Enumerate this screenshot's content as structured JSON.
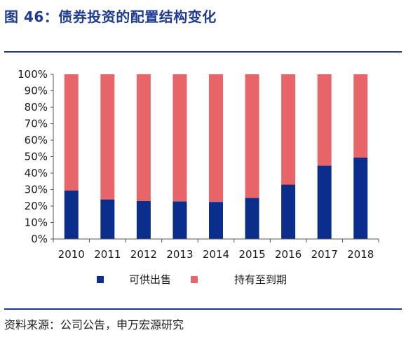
{
  "figure": {
    "title": "图 46：债券投资的配置结构变化",
    "source": "资料来源：公司公告，申万宏源研究"
  },
  "colors": {
    "accent": "#1f3a93",
    "series_available": "#0b2d8c",
    "series_held": "#e8666a"
  },
  "chart_data": {
    "type": "bar",
    "stacked": true,
    "percent_stacked": true,
    "categories": [
      "2010",
      "2011",
      "2012",
      "2013",
      "2014",
      "2015",
      "2016",
      "2017",
      "2018"
    ],
    "series": [
      {
        "name": "可供出售",
        "values": [
          29.5,
          24,
          23,
          22.8,
          22.5,
          25,
          33,
          44.5,
          49.5
        ]
      },
      {
        "name": "持有至到期",
        "values": [
          70.5,
          76,
          77,
          77.2,
          77.5,
          75,
          67,
          55.5,
          50.5
        ]
      }
    ],
    "ylim": [
      0,
      100
    ],
    "yticks": [
      "0%",
      "10%",
      "20%",
      "30%",
      "40%",
      "50%",
      "60%",
      "70%",
      "80%",
      "90%",
      "100%"
    ],
    "grid": false,
    "legend": "bottom"
  }
}
